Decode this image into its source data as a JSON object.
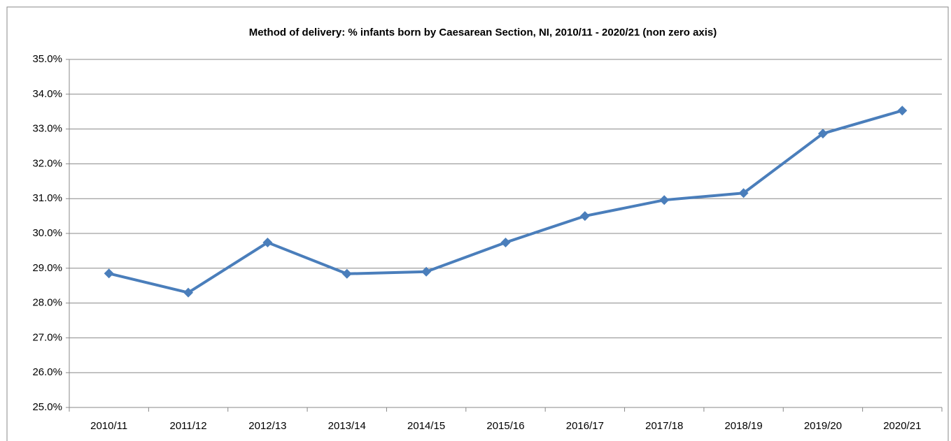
{
  "chart_data": {
    "type": "line",
    "title": "Method of delivery: % infants born by Caesarean Section, NI, 2010/11 - 2020/21 (non  zero axis)",
    "categories": [
      "2010/11",
      "2011/12",
      "2012/13",
      "2013/14",
      "2014/15",
      "2015/16",
      "2016/17",
      "2017/18",
      "2018/19",
      "2019/20",
      "2020/21"
    ],
    "series": [
      {
        "name": "% infants born by Caesarean Section",
        "color": "#4a7ebb",
        "values": [
          28.85,
          28.3,
          29.74,
          28.84,
          28.9,
          29.74,
          30.5,
          30.96,
          31.16,
          32.87,
          33.53
        ]
      }
    ],
    "ylim": [
      25,
      35
    ],
    "yticks": [
      {
        "value": 25,
        "label": "25.0%"
      },
      {
        "value": 26,
        "label": "26.0%"
      },
      {
        "value": 27,
        "label": "27.0%"
      },
      {
        "value": 28,
        "label": "28.0%"
      },
      {
        "value": 29,
        "label": "29.0%"
      },
      {
        "value": 30,
        "label": "30.0%"
      },
      {
        "value": 31,
        "label": "31.0%"
      },
      {
        "value": 32,
        "label": "32.0%"
      },
      {
        "value": 33,
        "label": "33.0%"
      },
      {
        "value": 34,
        "label": "34.0%"
      },
      {
        "value": 35,
        "label": "35.0%"
      }
    ],
    "grid": true
  }
}
